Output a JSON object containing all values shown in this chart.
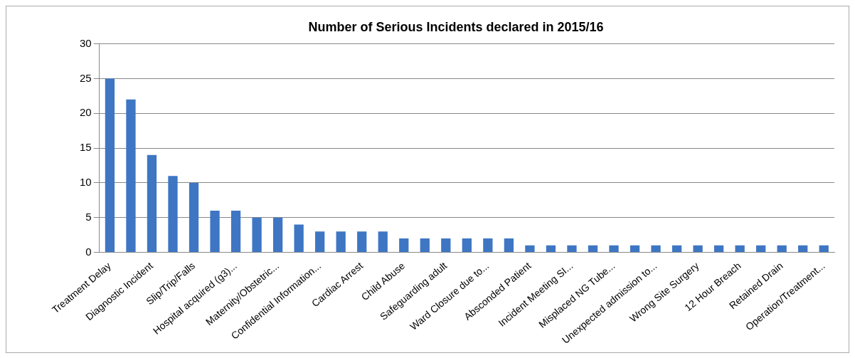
{
  "chart_data": {
    "type": "bar",
    "title": "Number of Serious Incidents declared in 2015/16",
    "categories": [
      "Treatment Delay",
      null,
      "Diagnostic Incident",
      null,
      "Slip/Trip/Falls",
      null,
      "Hospital acquired (g3)...",
      null,
      "Maternity/Obstetric...",
      null,
      "Confidential Information...",
      null,
      "Cardiac Arrest",
      null,
      "Child Abuse",
      null,
      "Safeguarding adult",
      null,
      "Ward Closure due to...",
      null,
      "Absconded Patient",
      null,
      "Incident Meeting SI...",
      null,
      "Misplaced NG Tube...",
      null,
      "Unexpected admission to...",
      null,
      "Wrong Site Surgery",
      null,
      "12 Hour Breach",
      null,
      "Retained Drain",
      null,
      "Operation/Treatment..."
    ],
    "values": [
      25,
      22,
      14,
      11,
      10,
      6,
      6,
      5,
      5,
      4,
      3,
      3,
      3,
      3,
      2,
      2,
      2,
      2,
      2,
      2,
      1,
      1,
      1,
      1,
      1,
      1,
      1,
      1,
      1,
      1,
      1,
      1,
      1,
      1,
      1
    ],
    "color": "#3e76c3",
    "ylim": [
      0,
      30
    ],
    "yticks": [
      0,
      5,
      10,
      15,
      20,
      25,
      30
    ],
    "grid": "y",
    "legend": false
  }
}
